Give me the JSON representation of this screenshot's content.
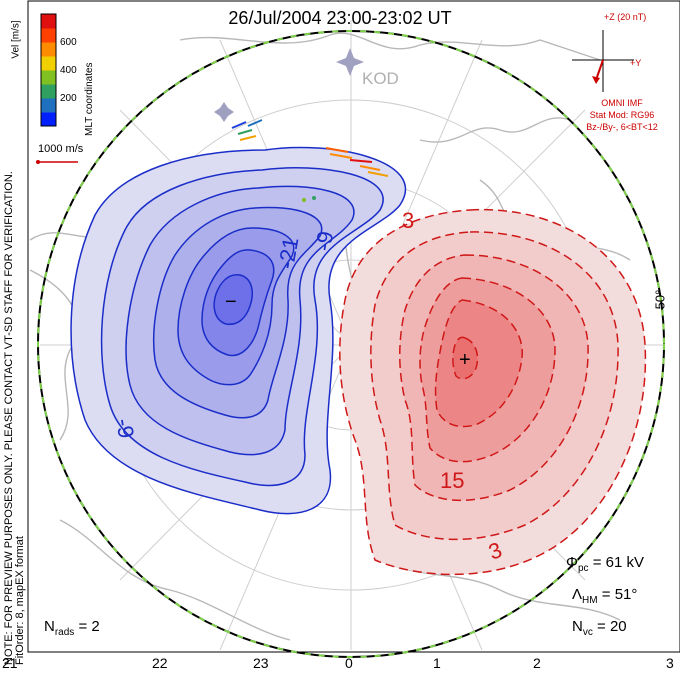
{
  "title": "26/Jul/2004 23:00-23:02 UT",
  "station": "KOD",
  "colorbar": {
    "label": "Vel [m/s]",
    "ticks": [
      "600",
      "400",
      "200"
    ],
    "colors": [
      "#0020ff",
      "#2070c0",
      "#30a060",
      "#80c020",
      "#f0d000",
      "#ff8c00",
      "#ff4000",
      "#e01010"
    ]
  },
  "coords_label": "MLT coordinates",
  "ref_vector_label": "1000 m/s",
  "side_note_1": "NOTE: FOR PREVIEW PURPOSES ONLY. PLEASE CONTACT VT-SD STAFF FOR VERIFICATION.",
  "side_note_2": "FitOrder: 8, mapEX format",
  "imf": {
    "scale_label": "+Z (20 nT)",
    "y_label": "+Y",
    "title": "OMNI IMF",
    "model": "Stat Mod: RG96",
    "bin": "Bz-/By-, 6<BT<12"
  },
  "stats": {
    "phi_symbol": "Φ",
    "phi_sub": "pc",
    "phi_value": "= 61 kV",
    "lambda_symbol": "Λ",
    "lambda_sub": "HM",
    "lambda_value": "= 51°",
    "nvc_symbol": "N",
    "nvc_sub": "vc",
    "nvc_value": "= 20",
    "nrads_symbol": "N",
    "nrads_sub": "rads",
    "nrads_value": "= 2"
  },
  "lat_label": "50°",
  "mlt_ticks": [
    "21",
    "22",
    "23",
    "0",
    "1",
    "2",
    "3"
  ],
  "contour_labels": {
    "neg_a": "-9",
    "neg_b": "-21",
    "neg_c": "-9",
    "neg_min": "−",
    "pos_a": "3",
    "pos_b": "15",
    "pos_c": "3",
    "pos_max": "+"
  }
}
